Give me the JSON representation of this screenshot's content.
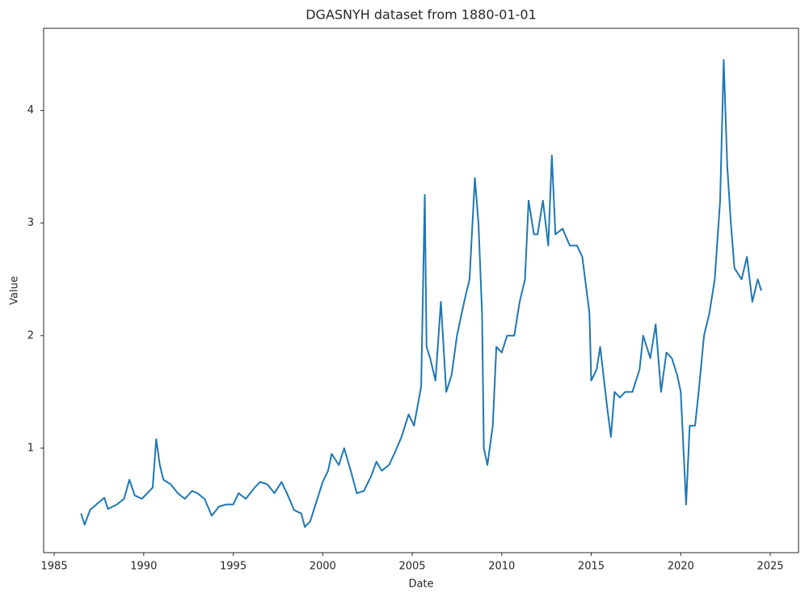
{
  "chart_data": {
    "type": "line",
    "title": "DGASNYH dataset from 1880-01-01",
    "xlabel": "Date",
    "ylabel": "Value",
    "x": [
      1986.5,
      1986.7,
      1987.0,
      1987.5,
      1987.8,
      1988.0,
      1988.5,
      1988.9,
      1989.2,
      1989.5,
      1989.9,
      1990.2,
      1990.5,
      1990.7,
      1990.9,
      1991.1,
      1991.5,
      1991.9,
      1992.3,
      1992.7,
      1993.0,
      1993.4,
      1993.8,
      1994.2,
      1994.6,
      1995.0,
      1995.3,
      1995.7,
      1996.2,
      1996.5,
      1996.9,
      1997.3,
      1997.7,
      1998.0,
      1998.4,
      1998.8,
      1999.0,
      1999.3,
      1999.6,
      2000.0,
      2000.3,
      2000.5,
      2000.9,
      2001.2,
      2001.6,
      2001.9,
      2002.3,
      2002.7,
      2003.0,
      2003.3,
      2003.7,
      2004.0,
      2004.4,
      2004.8,
      2005.1,
      2005.5,
      2005.7,
      2005.8,
      2006.0,
      2006.3,
      2006.6,
      2006.9,
      2007.2,
      2007.5,
      2007.9,
      2008.2,
      2008.5,
      2008.7,
      2008.9,
      2009.0,
      2009.2,
      2009.5,
      2009.7,
      2010.0,
      2010.3,
      2010.7,
      2011.0,
      2011.3,
      2011.5,
      2011.8,
      2012.0,
      2012.3,
      2012.6,
      2012.8,
      2013.0,
      2013.4,
      2013.8,
      2014.2,
      2014.5,
      2014.9,
      2015.0,
      2015.3,
      2015.5,
      2015.9,
      2016.1,
      2016.3,
      2016.6,
      2016.9,
      2017.3,
      2017.7,
      2017.9,
      2018.3,
      2018.6,
      2018.9,
      2019.2,
      2019.5,
      2019.8,
      2020.0,
      2020.3,
      2020.5,
      2020.8,
      2021.0,
      2021.3,
      2021.6,
      2021.9,
      2022.2,
      2022.4,
      2022.6,
      2022.8,
      2023.0,
      2023.4,
      2023.7,
      2024.0,
      2024.3,
      2024.5
    ],
    "series": [
      {
        "name": "DGASNYH",
        "color": "#1f77b4",
        "values": [
          0.42,
          0.32,
          0.45,
          0.52,
          0.56,
          0.46,
          0.5,
          0.55,
          0.72,
          0.58,
          0.55,
          0.6,
          0.65,
          1.08,
          0.85,
          0.72,
          0.68,
          0.6,
          0.55,
          0.62,
          0.6,
          0.55,
          0.4,
          0.48,
          0.5,
          0.5,
          0.6,
          0.55,
          0.65,
          0.7,
          0.68,
          0.6,
          0.7,
          0.6,
          0.45,
          0.42,
          0.3,
          0.35,
          0.5,
          0.7,
          0.8,
          0.95,
          0.85,
          1.0,
          0.78,
          0.6,
          0.62,
          0.75,
          0.88,
          0.8,
          0.85,
          0.95,
          1.1,
          1.3,
          1.2,
          1.55,
          3.25,
          1.9,
          1.8,
          1.6,
          2.3,
          1.5,
          1.65,
          2.0,
          2.3,
          2.5,
          3.4,
          3.0,
          2.2,
          1.0,
          0.85,
          1.2,
          1.9,
          1.85,
          2.0,
          2.0,
          2.3,
          2.5,
          3.2,
          2.9,
          2.9,
          3.2,
          2.8,
          3.6,
          2.9,
          2.95,
          2.8,
          2.8,
          2.7,
          2.2,
          1.6,
          1.7,
          1.9,
          1.35,
          1.1,
          1.5,
          1.45,
          1.5,
          1.5,
          1.7,
          2.0,
          1.8,
          2.1,
          1.5,
          1.85,
          1.8,
          1.65,
          1.5,
          0.5,
          1.2,
          1.2,
          1.5,
          2.0,
          2.2,
          2.5,
          3.2,
          4.45,
          3.5,
          3.0,
          2.6,
          2.5,
          2.7,
          2.3,
          2.5,
          2.4
        ]
      }
    ],
    "xlim": [
      1984.41,
      2026.58
    ],
    "ylim": [
      0.072,
      4.73
    ],
    "xticks": [
      1985,
      1990,
      1995,
      2000,
      2005,
      2010,
      2015,
      2020,
      2025
    ],
    "yticks": [
      1,
      2,
      3,
      4
    ],
    "grid": false
  }
}
